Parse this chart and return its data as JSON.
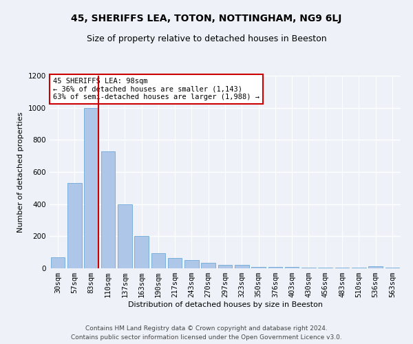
{
  "title": "45, SHERIFFS LEA, TOTON, NOTTINGHAM, NG9 6LJ",
  "subtitle": "Size of property relative to detached houses in Beeston",
  "xlabel": "Distribution of detached houses by size in Beeston",
  "ylabel": "Number of detached properties",
  "categories": [
    "30sqm",
    "57sqm",
    "83sqm",
    "110sqm",
    "137sqm",
    "163sqm",
    "190sqm",
    "217sqm",
    "243sqm",
    "270sqm",
    "297sqm",
    "323sqm",
    "350sqm",
    "376sqm",
    "403sqm",
    "430sqm",
    "456sqm",
    "483sqm",
    "510sqm",
    "536sqm",
    "563sqm"
  ],
  "values": [
    70,
    530,
    1000,
    730,
    400,
    200,
    95,
    65,
    50,
    35,
    20,
    20,
    8,
    8,
    8,
    5,
    5,
    5,
    5,
    12,
    5
  ],
  "bar_color": "#aec6e8",
  "bar_edge_color": "#5a9fd4",
  "highlight_index": 2,
  "highlight_color": "#cc0000",
  "ylim": [
    0,
    1200
  ],
  "yticks": [
    0,
    200,
    400,
    600,
    800,
    1000,
    1200
  ],
  "annotation_text": "45 SHERIFFS LEA: 98sqm\n← 36% of detached houses are smaller (1,143)\n63% of semi-detached houses are larger (1,988) →",
  "annotation_box_color": "#ffffff",
  "annotation_box_edge_color": "#cc0000",
  "footer_line1": "Contains HM Land Registry data © Crown copyright and database right 2024.",
  "footer_line2": "Contains public sector information licensed under the Open Government Licence v3.0.",
  "background_color": "#eef2f8",
  "grid_color": "#ffffff",
  "title_fontsize": 10,
  "subtitle_fontsize": 9,
  "axis_label_fontsize": 8,
  "tick_fontsize": 7.5,
  "annotation_fontsize": 7.5,
  "footer_fontsize": 6.5
}
